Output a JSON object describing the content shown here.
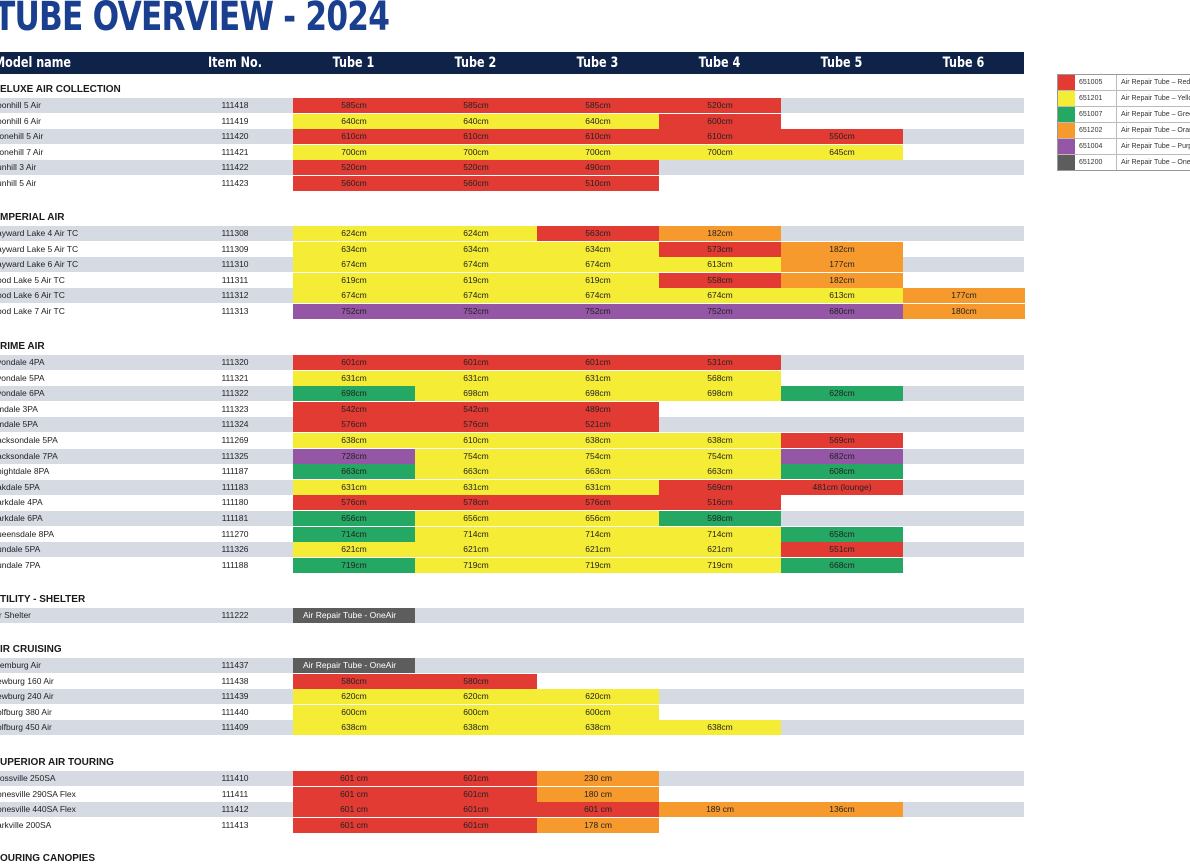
{
  "title": "TUBE OVERVIEW - 2024",
  "header": {
    "model": "Model name",
    "item": "Item No.",
    "tubes": [
      "Tube 1",
      "Tube 2",
      "Tube 3",
      "Tube 4",
      "Tube 5",
      "Tube 6"
    ]
  },
  "colors": {
    "R": "#e23b34",
    "Y": "#f5ec35",
    "G": "#24a864",
    "O": "#f69a2e",
    "P": "#9556a6",
    "D": "#5d5d5d",
    "header_bg": "#0f2349",
    "title": "#1b3f8f",
    "row_shade": "#d6dbe3"
  },
  "legend": [
    {
      "color": "R",
      "code": "651005",
      "desc": "Air Repair Tube – Red"
    },
    {
      "color": "Y",
      "code": "651201",
      "desc": "Air Repair Tube – Yello"
    },
    {
      "color": "G",
      "code": "651007",
      "desc": "Air Repair Tube – Gree"
    },
    {
      "color": "O",
      "code": "651202",
      "desc": "Air Repair Tube – Oran"
    },
    {
      "color": "P",
      "code": "651004",
      "desc": "Air Repair Tube – Purp"
    },
    {
      "color": "D",
      "code": "651200",
      "desc": "Air Repair Tube – One"
    }
  ],
  "sections": [
    {
      "name": "ELUXE AIR COLLECTION",
      "rows": [
        {
          "name": "oonhill 5 Air",
          "item": "111418",
          "cells": [
            [
              "585cm",
              "R"
            ],
            [
              "585cm",
              "R"
            ],
            [
              "585cm",
              "R"
            ],
            [
              "520cm",
              "R"
            ]
          ]
        },
        {
          "name": "oonhill 6 Air",
          "item": "111419",
          "cells": [
            [
              "640cm",
              "Y"
            ],
            [
              "640cm",
              "Y"
            ],
            [
              "640cm",
              "Y"
            ],
            [
              "600cm",
              "R"
            ]
          ]
        },
        {
          "name": "tonehill 5 Air",
          "item": "111420",
          "cells": [
            [
              "610cm",
              "R"
            ],
            [
              "610cm",
              "R"
            ],
            [
              "610cm",
              "R"
            ],
            [
              "610cm",
              "R"
            ],
            [
              "550cm",
              "R"
            ]
          ]
        },
        {
          "name": "tonehill 7 Air",
          "item": "111421",
          "cells": [
            [
              "700cm",
              "Y"
            ],
            [
              "700cm",
              "Y"
            ],
            [
              "700cm",
              "Y"
            ],
            [
              "700cm",
              "Y"
            ],
            [
              "645cm",
              "Y"
            ]
          ]
        },
        {
          "name": "unhill 3 Air",
          "item": "111422",
          "cells": [
            [
              "520cm",
              "R"
            ],
            [
              "520cm",
              "R"
            ],
            [
              "490cm",
              "R"
            ]
          ]
        },
        {
          "name": "unhill 5 Air",
          "item": "111423",
          "cells": [
            [
              "560cm",
              "R"
            ],
            [
              "560cm",
              "R"
            ],
            [
              "510cm",
              "R"
            ]
          ]
        }
      ]
    },
    {
      "name": "MPERIAL AIR",
      "rows": [
        {
          "name": "ayward Lake 4 Air TC",
          "item": "111308",
          "cells": [
            [
              "624cm",
              "Y"
            ],
            [
              "624cm",
              "Y"
            ],
            [
              "563cm",
              "R"
            ],
            [
              "182cm",
              "O"
            ]
          ]
        },
        {
          "name": "ayward Lake 5 Air TC",
          "item": "111309",
          "cells": [
            [
              "634cm",
              "Y"
            ],
            [
              "634cm",
              "Y"
            ],
            [
              "634cm",
              "Y"
            ],
            [
              "573cm",
              "R"
            ],
            [
              "182cm",
              "O"
            ]
          ]
        },
        {
          "name": "ayward Lake 6 Air TC",
          "item": "111310",
          "cells": [
            [
              "674cm",
              "Y"
            ],
            [
              "674cm",
              "Y"
            ],
            [
              "674cm",
              "Y"
            ],
            [
              "613cm",
              "Y"
            ],
            [
              "177cm",
              "O"
            ]
          ]
        },
        {
          "name": "ood Lake 5 Air TC",
          "item": "111311",
          "cells": [
            [
              "619cm",
              "Y"
            ],
            [
              "619cm",
              "Y"
            ],
            [
              "619cm",
              "Y"
            ],
            [
              "558cm",
              "R"
            ],
            [
              "182cm",
              "O"
            ]
          ]
        },
        {
          "name": "ood Lake 6 Air TC",
          "item": "111312",
          "cells": [
            [
              "674cm",
              "Y"
            ],
            [
              "674cm",
              "Y"
            ],
            [
              "674cm",
              "Y"
            ],
            [
              "674cm",
              "Y"
            ],
            [
              "613cm",
              "Y"
            ],
            [
              "177cm",
              "O"
            ]
          ]
        },
        {
          "name": "ood Lake 7 Air TC",
          "item": "111313",
          "cells": [
            [
              "752cm",
              "P"
            ],
            [
              "752cm",
              "P"
            ],
            [
              "752cm",
              "P"
            ],
            [
              "752cm",
              "P"
            ],
            [
              "680cm",
              "P"
            ],
            [
              "180cm",
              "O"
            ]
          ]
        }
      ]
    },
    {
      "name": "RIME AIR",
      "rows": [
        {
          "name": "vondale 4PA",
          "item": "111320",
          "cells": [
            [
              "601cm",
              "R"
            ],
            [
              "601cm",
              "R"
            ],
            [
              "601cm",
              "R"
            ],
            [
              "531cm",
              "R"
            ]
          ]
        },
        {
          "name": "vondale 5PA",
          "item": "111321",
          "cells": [
            [
              "631cm",
              "Y"
            ],
            [
              "631cm",
              "Y"
            ],
            [
              "631cm",
              "Y"
            ],
            [
              "568cm",
              "Y"
            ]
          ]
        },
        {
          "name": "vondale 6PA",
          "item": "111322",
          "cells": [
            [
              "698cm",
              "G"
            ],
            [
              "698cm",
              "Y"
            ],
            [
              "698cm",
              "Y"
            ],
            [
              "698cm",
              "Y"
            ],
            [
              "628cm",
              "G"
            ]
          ]
        },
        {
          "name": "mdale 3PA",
          "item": "111323",
          "cells": [
            [
              "542cm",
              "R"
            ],
            [
              "542cm",
              "R"
            ],
            [
              "489cm",
              "R"
            ]
          ]
        },
        {
          "name": "mdale 5PA",
          "item": "111324",
          "cells": [
            [
              "576cm",
              "R"
            ],
            [
              "576cm",
              "R"
            ],
            [
              "521cm",
              "R"
            ]
          ]
        },
        {
          "name": "acksondale 5PA",
          "item": "111269",
          "cells": [
            [
              "638cm",
              "Y"
            ],
            [
              "610cm",
              "Y"
            ],
            [
              "638cm",
              "Y"
            ],
            [
              "638cm",
              "Y"
            ],
            [
              "569cm",
              "R"
            ]
          ]
        },
        {
          "name": "acksondale 7PA",
          "item": "111325",
          "cells": [
            [
              "728cm",
              "P"
            ],
            [
              "754cm",
              "Y"
            ],
            [
              "754cm",
              "Y"
            ],
            [
              "754cm",
              "Y"
            ],
            [
              "682cm",
              "P"
            ]
          ]
        },
        {
          "name": "nightdale 8PA",
          "item": "111187",
          "cells": [
            [
              "663cm",
              "G"
            ],
            [
              "663cm",
              "Y"
            ],
            [
              "663cm",
              "Y"
            ],
            [
              "663cm",
              "Y"
            ],
            [
              "608cm",
              "G"
            ]
          ]
        },
        {
          "name": "akdale 5PA",
          "item": "111183",
          "cells": [
            [
              "631cm",
              "Y"
            ],
            [
              "631cm",
              "Y"
            ],
            [
              "631cm",
              "Y"
            ],
            [
              "569cm",
              "R"
            ],
            [
              "481cm (lounge)",
              "R"
            ]
          ]
        },
        {
          "name": "arkdale 4PA",
          "item": "111180",
          "cells": [
            [
              "576cm",
              "R"
            ],
            [
              "578cm",
              "R"
            ],
            [
              "576cm",
              "R"
            ],
            [
              "516cm",
              "R"
            ]
          ]
        },
        {
          "name": "arkdale 6PA",
          "item": "111181",
          "cells": [
            [
              "656cm",
              "G"
            ],
            [
              "656cm",
              "Y"
            ],
            [
              "656cm",
              "Y"
            ],
            [
              "598cm",
              "G"
            ]
          ]
        },
        {
          "name": "ueensdale 8PA",
          "item": "111270",
          "cells": [
            [
              "714cm",
              "G"
            ],
            [
              "714cm",
              "Y"
            ],
            [
              "714cm",
              "Y"
            ],
            [
              "714cm",
              "Y"
            ],
            [
              "658cm",
              "G"
            ]
          ]
        },
        {
          "name": "undale 5PA",
          "item": "111326",
          "cells": [
            [
              "621cm",
              "Y"
            ],
            [
              "621cm",
              "Y"
            ],
            [
              "621cm",
              "Y"
            ],
            [
              "621cm",
              "Y"
            ],
            [
              "551cm",
              "R"
            ]
          ]
        },
        {
          "name": "undale 7PA",
          "item": "111188",
          "cells": [
            [
              "719cm",
              "G"
            ],
            [
              "719cm",
              "Y"
            ],
            [
              "719cm",
              "Y"
            ],
            [
              "719cm",
              "Y"
            ],
            [
              "668cm",
              "G"
            ]
          ]
        }
      ]
    },
    {
      "name": "TILITY - SHELTER",
      "rows": [
        {
          "name": "ir Shelter",
          "item": "111222",
          "wide": "Air Repair Tube - OneAir"
        }
      ]
    },
    {
      "name": "IR CRUISING",
      "rows": [
        {
          "name": "remburg Air",
          "item": "111437",
          "wide": "Air Repair Tube - OneAir"
        },
        {
          "name": "ewburg 160 Air",
          "item": "111438",
          "cells": [
            [
              "580cm",
              "R"
            ],
            [
              "580cm",
              "R"
            ]
          ]
        },
        {
          "name": "ewburg 240 Air",
          "item": "111439",
          "cells": [
            [
              "620cm",
              "Y"
            ],
            [
              "620cm",
              "Y"
            ],
            [
              "620cm",
              "Y"
            ]
          ]
        },
        {
          "name": "olfburg 380 Air",
          "item": "111440",
          "cells": [
            [
              "600cm",
              "Y"
            ],
            [
              "600cm",
              "Y"
            ],
            [
              "600cm",
              "Y"
            ]
          ]
        },
        {
          "name": "olfburg 450 Air",
          "item": "111409",
          "cells": [
            [
              "638cm",
              "Y"
            ],
            [
              "638cm",
              "Y"
            ],
            [
              "638cm",
              "Y"
            ],
            [
              "638cm",
              "Y"
            ]
          ]
        }
      ]
    },
    {
      "name": "UPERIOR AIR TOURING",
      "rows": [
        {
          "name": "rossville 250SA",
          "item": "111410",
          "cells": [
            [
              "601 cm",
              "R"
            ],
            [
              "601cm",
              "R"
            ],
            [
              "230 cm",
              "O"
            ]
          ]
        },
        {
          "name": "onesville 290SA Flex",
          "item": "111411",
          "cells": [
            [
              "601 cm",
              "R"
            ],
            [
              "601cm",
              "R"
            ],
            [
              "180 cm",
              "O"
            ]
          ]
        },
        {
          "name": "onesville 440SA Flex",
          "item": "111412",
          "cells": [
            [
              "601 cm",
              "R"
            ],
            [
              "601cm",
              "R"
            ],
            [
              "601 cm",
              "R"
            ],
            [
              "189 cm",
              "O"
            ],
            [
              "136cm",
              "O"
            ]
          ]
        },
        {
          "name": "arkville 200SA",
          "item": "111413",
          "cells": [
            [
              "601 cm",
              "R"
            ],
            [
              "601cm",
              "R"
            ],
            [
              "178 cm",
              "O"
            ]
          ]
        }
      ]
    },
    {
      "name": "OURING CANOPIES",
      "rows": []
    }
  ]
}
